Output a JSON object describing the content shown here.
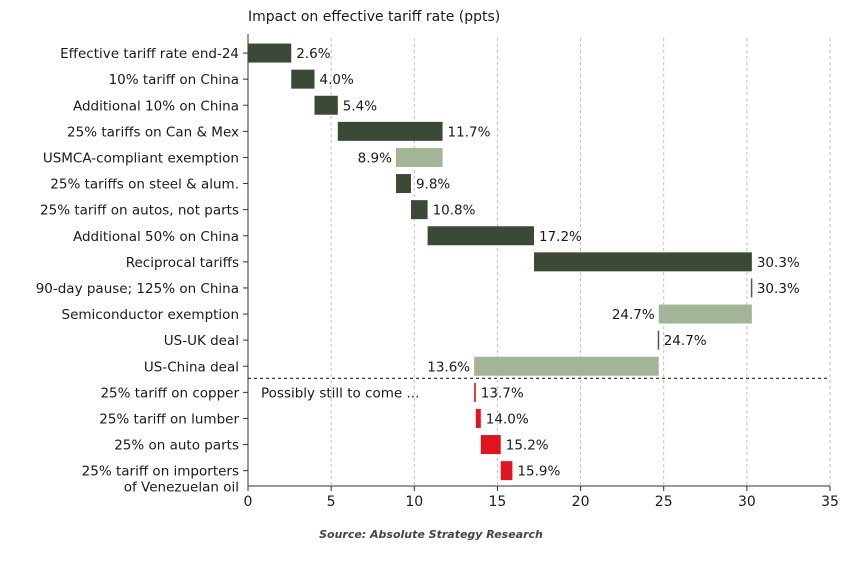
{
  "chart_data": {
    "type": "bar",
    "subtype": "waterfall (horizontal)",
    "title": "Impact on effective tariff rate (ppts)",
    "source": "Source: Absolute Strategy Research",
    "xlim": [
      0,
      35
    ],
    "x_ticks": [
      "0",
      "5",
      "10",
      "15",
      "20",
      "25",
      "30",
      "35"
    ],
    "grid": "vertical dashed gridlines",
    "divider_note": "Possibly still to come ...",
    "colors": {
      "increase": "#3b4a36",
      "decrease": "#a3b597",
      "possible": "#e0141e",
      "text": "#1a1a1a"
    },
    "items": [
      {
        "label": "Effective tariff rate end-24",
        "start": 0,
        "end": 2.6,
        "value_label": "2.6%",
        "kind": "increase"
      },
      {
        "label": "10% tariff on China",
        "start": 2.6,
        "end": 4.0,
        "value_label": "4.0%",
        "kind": "increase"
      },
      {
        "label": "Additional 10% on China",
        "start": 4.0,
        "end": 5.4,
        "value_label": "5.4%",
        "kind": "increase"
      },
      {
        "label": "25% tariffs on Can & Mex",
        "start": 5.4,
        "end": 11.7,
        "value_label": "11.7%",
        "kind": "increase"
      },
      {
        "label": "USMCA-compliant exemption",
        "start": 11.7,
        "end": 8.9,
        "value_label": "8.9%",
        "kind": "decrease"
      },
      {
        "label": "25% tariffs on steel & alum.",
        "start": 8.9,
        "end": 9.8,
        "value_label": "9.8%",
        "kind": "increase"
      },
      {
        "label": "25% tariff on autos, not parts",
        "start": 9.8,
        "end": 10.8,
        "value_label": "10.8%",
        "kind": "increase"
      },
      {
        "label": "Additional 50% on China",
        "start": 10.8,
        "end": 17.2,
        "value_label": "17.2%",
        "kind": "increase"
      },
      {
        "label": "Reciprocal tariffs",
        "start": 17.2,
        "end": 30.3,
        "value_label": "30.3%",
        "kind": "increase"
      },
      {
        "label": "90-day pause; 125% on China",
        "start": 30.3,
        "end": 30.3,
        "value_label": "30.3%",
        "kind": "increase"
      },
      {
        "label": "Semiconductor exemption",
        "start": 30.3,
        "end": 24.7,
        "value_label": "24.7%",
        "kind": "decrease"
      },
      {
        "label": "US-UK deal",
        "start": 24.7,
        "end": 24.7,
        "value_label": "24.7%",
        "kind": "decrease"
      },
      {
        "label": "US-China deal",
        "start": 24.7,
        "end": 13.6,
        "value_label": "13.6%",
        "kind": "decrease"
      },
      {
        "label": "25% tariff on copper",
        "start": 13.6,
        "end": 13.7,
        "value_label": "13.7%",
        "kind": "possible"
      },
      {
        "label": "25% tariff on lumber",
        "start": 13.7,
        "end": 14.0,
        "value_label": "14.0%",
        "kind": "possible"
      },
      {
        "label": "25% on auto parts",
        "start": 14.0,
        "end": 15.2,
        "value_label": "15.2%",
        "kind": "possible"
      },
      {
        "label": "25% tariff on importers\nof Venezuelan oil",
        "start": 15.2,
        "end": 15.9,
        "value_label": "15.9%",
        "kind": "possible"
      }
    ]
  }
}
